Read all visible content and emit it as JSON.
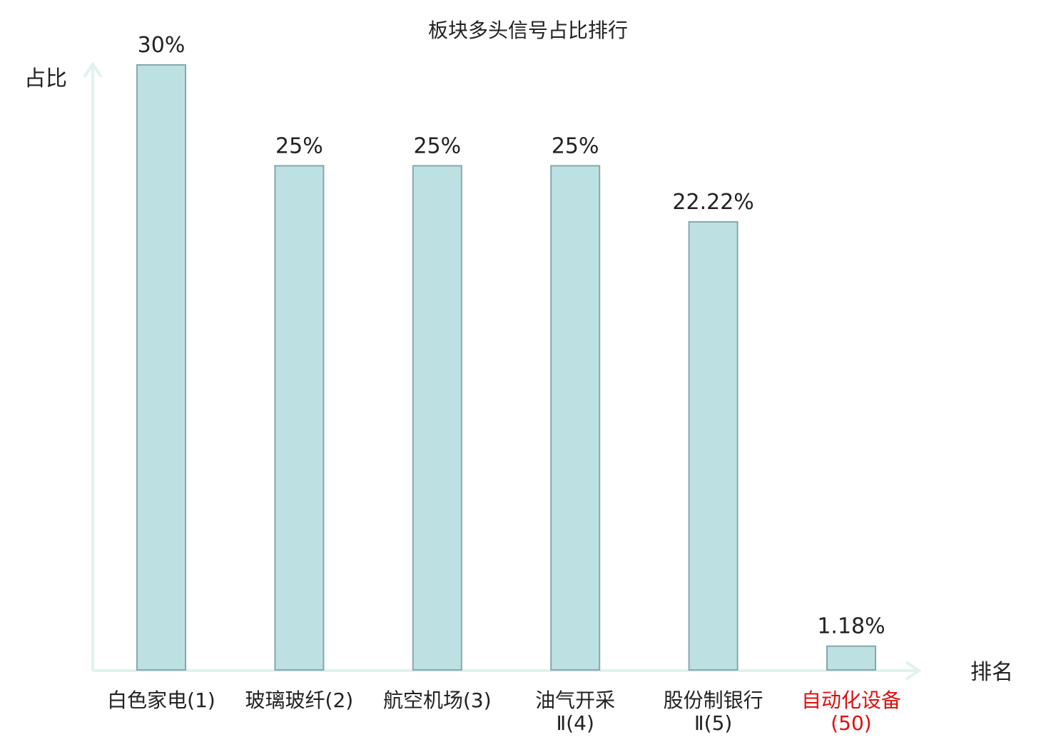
{
  "chart_data": {
    "type": "bar",
    "title": "板块多头信号占比排行",
    "y_label": "占比",
    "x_label": "排名",
    "categories": [
      "白色家电(1)",
      "玻璃玻纤(2)",
      "航空机场(3)",
      "油气开采Ⅱ(4)",
      "股份制银行Ⅱ(5)",
      "自动化设备(50)"
    ],
    "category_colors": [
      "#222222",
      "#222222",
      "#222222",
      "#222222",
      "#222222",
      "#e01010"
    ],
    "values": [
      30,
      25,
      25,
      25,
      22.22,
      1.18
    ],
    "value_labels": [
      "30%",
      "25%",
      "25%",
      "25%",
      "22.22%",
      "1.18%"
    ],
    "color": "#bde0e3",
    "ylim": [
      0,
      30
    ]
  }
}
